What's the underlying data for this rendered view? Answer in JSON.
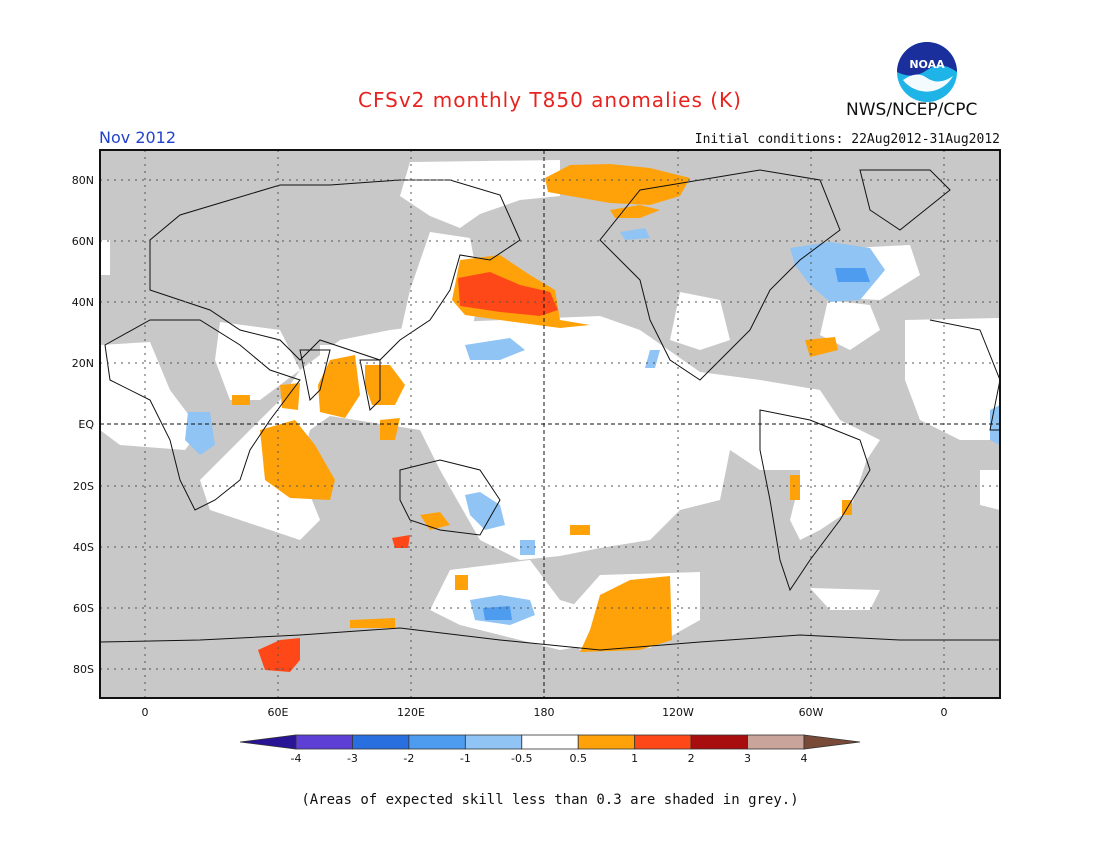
{
  "title": "CFSv2 monthly T850 anomalies (K)",
  "month": "Nov 2012",
  "initial_conditions": "Initial conditions: 22Aug2012-31Aug2012",
  "agency": "NWS/NCEP/CPC",
  "logo_text": "NOAA",
  "footnote": "(Areas of expected skill less than 0.3 are shaded in grey.)",
  "lat_labels": [
    "80N",
    "60N",
    "40N",
    "20N",
    "EQ",
    "20S",
    "40S",
    "60S",
    "80S"
  ],
  "lon_labels": [
    "0",
    "60E",
    "120E",
    "180",
    "120W",
    "60W",
    "0"
  ],
  "colorbar": {
    "tick_labels": [
      "-4",
      "-3",
      "-2",
      "-1",
      "-0.5",
      "0.5",
      "1",
      "2",
      "3",
      "4"
    ],
    "colors": [
      "#2a1496",
      "#5e3fd6",
      "#2a6fe0",
      "#4e9cf0",
      "#8fc4f4",
      "#ffffff",
      "#ffa20a",
      "#ff4818",
      "#a80e0e",
      "#c8a49a",
      "#7a4a38"
    ]
  },
  "colors": {
    "skill_grey": "#c8c8c8",
    "title_red": "#e8231f",
    "month_blue": "#2242cc"
  }
}
